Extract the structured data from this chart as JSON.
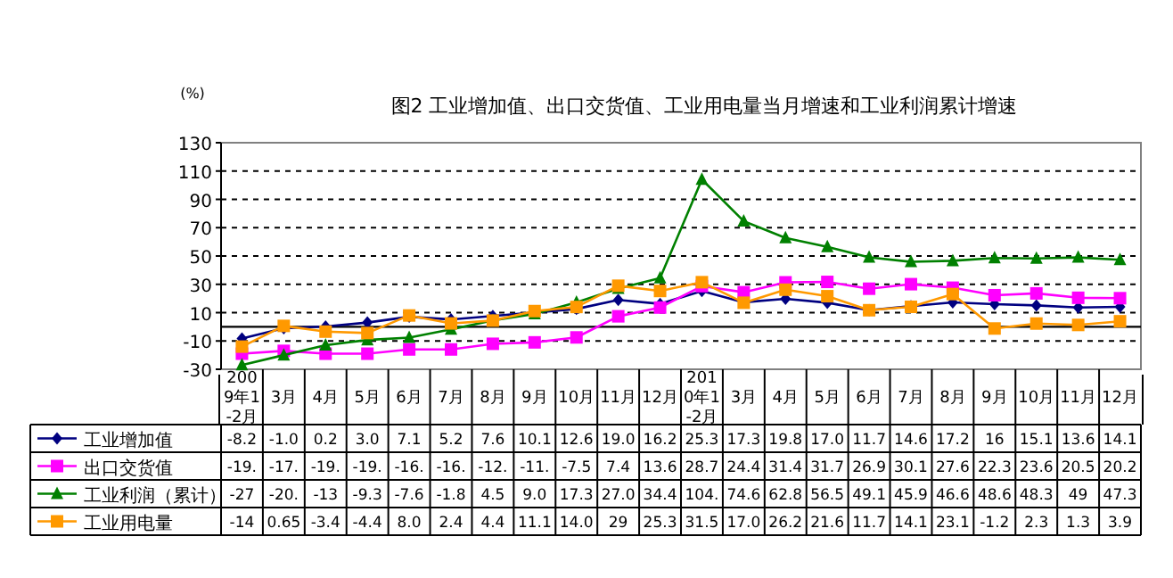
{
  "chart_data": {
    "type": "line",
    "title": "图2  工业增加值、出口交货值、工业用电量当月增速和工业利润累计增速",
    "ylabel": "(%)",
    "categories": [
      "2009年1-2月",
      "3月",
      "4月",
      "5月",
      "6月",
      "7月",
      "8月",
      "9月",
      "10月",
      "11月",
      "12月",
      "2010年1-2月",
      "3月",
      "4月",
      "5月",
      "6月",
      "7月",
      "8月",
      "9月",
      "10月",
      "11月",
      "12月"
    ],
    "ylim": [
      -30,
      130
    ],
    "yticks": [
      -30,
      -10,
      10,
      30,
      50,
      70,
      90,
      110,
      130
    ],
    "grid": "y",
    "legend": "bottom left",
    "ref_lines": [
      {
        "axis": "y",
        "value": 0,
        "color": "#000000",
        "line_style": "solid"
      }
    ],
    "series": [
      {
        "name": "工业增加值",
        "color": "#000080",
        "marker": "diamond",
        "values": [
          -8.2,
          -1.0,
          0.2,
          3.0,
          7.1,
          5.2,
          7.6,
          10.1,
          12.6,
          19.0,
          16.2,
          25.3,
          17.3,
          19.8,
          17.0,
          11.7,
          14.6,
          17.2,
          16,
          15.1,
          13.6,
          14.1
        ],
        "value_labels": [
          "-8.2",
          "-1.0",
          "0.2",
          "3.0",
          "7.1",
          "5.2",
          "7.6",
          "10.1",
          "12.6",
          "19.0",
          "16.2",
          "25.3",
          "17.3",
          "19.8",
          "17.0",
          "11.7",
          "14.6",
          "17.2",
          "16",
          "15.1",
          "13.6",
          "14.1"
        ]
      },
      {
        "name": "出口交货值",
        "color": "#ff00ff",
        "marker": "square",
        "values": [
          -19,
          -17,
          -19,
          -19,
          -16,
          -16,
          -12,
          -11,
          -7.5,
          7.4,
          13.6,
          28.7,
          24.4,
          31.4,
          31.7,
          26.9,
          30.1,
          27.6,
          22.3,
          23.6,
          20.5,
          20.2
        ],
        "value_labels": [
          "-19.",
          "-17.",
          "-19.",
          "-19.",
          "-16.",
          "-16.",
          "-12.",
          "-11.",
          "-7.5",
          "7.4",
          "13.6",
          "28.7",
          "24.4",
          "31.4",
          "31.7",
          "26.9",
          "30.1",
          "27.6",
          "22.3",
          "23.6",
          "20.5",
          "20.2"
        ]
      },
      {
        "name": "工业利润（累计）",
        "color": "#008000",
        "marker": "triangle",
        "values": [
          -27,
          -20,
          -13,
          -9.3,
          -7.6,
          -1.8,
          4.5,
          9.0,
          17.3,
          27.0,
          34.4,
          104,
          74.6,
          62.8,
          56.5,
          49.1,
          45.9,
          46.6,
          48.6,
          48.3,
          49,
          47.3
        ],
        "value_labels": [
          "-27",
          "-20.",
          "-13",
          "-9.3",
          "-7.6",
          "-1.8",
          "4.5",
          "9.0",
          "17.3",
          "27.0",
          "34.4",
          "104.",
          "74.6",
          "62.8",
          "56.5",
          "49.1",
          "45.9",
          "46.6",
          "48.6",
          "48.3",
          "49",
          "47.3"
        ]
      },
      {
        "name": "工业用电量",
        "color": "#ff9900",
        "marker": "square",
        "values": [
          -14,
          0.65,
          -3.4,
          -4.4,
          8.0,
          2.4,
          4.4,
          11.1,
          14.0,
          29,
          25.3,
          31.5,
          17.0,
          26.2,
          21.6,
          11.7,
          14.1,
          23.1,
          -1.2,
          2.3,
          1.3,
          3.9
        ],
        "value_labels": [
          "-14",
          "0.65",
          "-3.4",
          "-4.4",
          "8.0",
          "2.4",
          "4.4",
          "11.1",
          "14.0",
          "29",
          "25.3",
          "31.5",
          "17.0",
          "26.2",
          "21.6",
          "11.7",
          "14.1",
          "23.1",
          "-1.2",
          "2.3",
          "1.3",
          "3.9"
        ]
      }
    ]
  }
}
